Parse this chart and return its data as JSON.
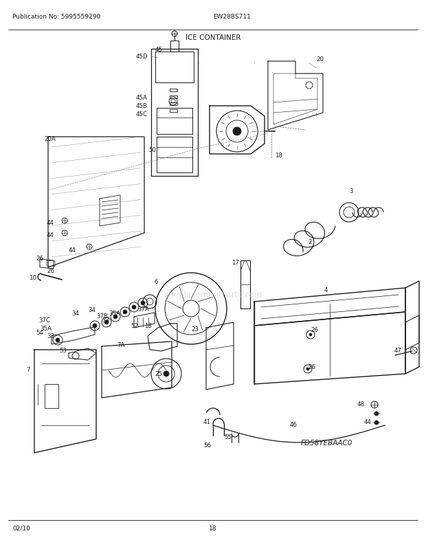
{
  "publication_no": "Publication No: 5995559290",
  "model": "EW28BS711",
  "title": "ICE CONTAINER",
  "diagram_code": "FD58YEBAAC0",
  "page_date": "02/10",
  "page_num": "18",
  "watermark": "eReplacementParts.com",
  "bg_color": "#ffffff",
  "line_color": "#1a1a1a",
  "text_color": "#1a1a1a",
  "watermark_color": "#c8c8c8",
  "fig_width": 6.2,
  "fig_height": 8.03,
  "dpi": 100
}
